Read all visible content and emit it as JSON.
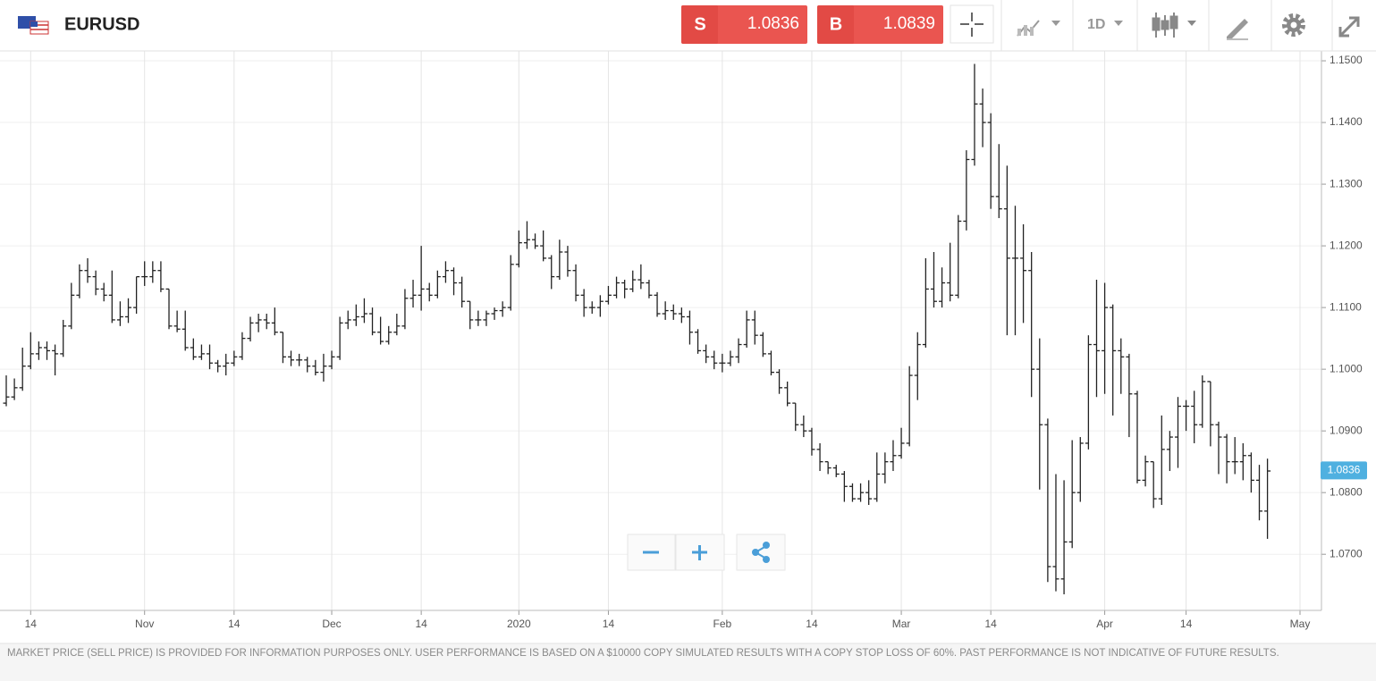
{
  "header": {
    "symbol": "EURUSD",
    "sell_label": "S",
    "sell_price": 1.0836,
    "buy_label": "B",
    "buy_price": 1.0839,
    "timeframe": "1D"
  },
  "footer": {
    "disclaimer": "MARKET PRICE (SELL PRICE) IS PROVIDED FOR INFORMATION PURPOSES ONLY. USER PERFORMANCE IS BASED ON A $10000 COPY SIMULATED RESULTS WITH A COPY STOP LOSS OF 60%. PAST PERFORMANCE IS NOT INDICATIVE OF FUTURE RESULTS."
  },
  "chart_data": {
    "type": "ohlc",
    "color": "#222222",
    "grid": true,
    "current_price": 1.0836,
    "ylim": [
      1.0609,
      1.1516
    ],
    "yticks": [
      {
        "value": 1.07,
        "label": "1.0700"
      },
      {
        "value": 1.08,
        "label": "1.0800"
      },
      {
        "value": 1.09,
        "label": "1.0900"
      },
      {
        "value": 1.1,
        "label": "1.1000"
      },
      {
        "value": 1.11,
        "label": "1.1100"
      },
      {
        "value": 1.12,
        "label": "1.1200"
      },
      {
        "value": 1.13,
        "label": "1.1300"
      },
      {
        "value": 1.14,
        "label": "1.1400"
      },
      {
        "value": 1.15,
        "label": "1.1500"
      }
    ],
    "categories": [
      null,
      null,
      null,
      "14",
      null,
      null,
      null,
      null,
      null,
      null,
      null,
      null,
      null,
      null,
      null,
      null,
      null,
      "Nov",
      null,
      null,
      null,
      null,
      null,
      null,
      null,
      null,
      null,
      null,
      "14",
      null,
      null,
      null,
      null,
      null,
      null,
      null,
      null,
      null,
      null,
      null,
      "Dec",
      null,
      null,
      null,
      null,
      null,
      null,
      null,
      null,
      null,
      null,
      "14",
      null,
      null,
      null,
      null,
      null,
      null,
      null,
      null,
      null,
      null,
      null,
      "2020",
      null,
      null,
      null,
      null,
      null,
      null,
      null,
      null,
      null,
      null,
      "14",
      null,
      null,
      null,
      null,
      null,
      null,
      null,
      null,
      null,
      null,
      null,
      null,
      null,
      "Feb",
      null,
      null,
      null,
      null,
      null,
      null,
      null,
      null,
      null,
      null,
      "14",
      null,
      null,
      null,
      null,
      null,
      null,
      null,
      null,
      null,
      null,
      "Mar",
      null,
      null,
      null,
      null,
      null,
      null,
      null,
      null,
      null,
      null,
      "14",
      null,
      null,
      null,
      null,
      null,
      null,
      null,
      null,
      null,
      null,
      null,
      null,
      null,
      "Apr",
      null,
      null,
      null,
      null,
      null,
      null,
      null,
      null,
      null,
      "14",
      null,
      null,
      null,
      null,
      null,
      null,
      null,
      null,
      null,
      null,
      null,
      null,
      null,
      "May"
    ],
    "open": [
      1.0945,
      1.0955,
      1.097,
      1.1005,
      1.1025,
      1.1035,
      1.103,
      1.1025,
      1.107,
      1.112,
      1.116,
      1.115,
      1.113,
      1.112,
      1.108,
      1.1085,
      1.11,
      1.115,
      1.115,
      1.116,
      1.113,
      1.107,
      1.1065,
      1.1035,
      1.102,
      1.1025,
      1.101,
      1.1005,
      1.101,
      1.102,
      1.105,
      1.1075,
      1.108,
      1.1075,
      1.106,
      1.102,
      1.1015,
      1.1015,
      1.1005,
      1.0995,
      1.1005,
      1.102,
      1.1075,
      1.108,
      1.1085,
      1.109,
      1.106,
      1.1045,
      1.106,
      1.107,
      1.1115,
      1.112,
      1.113,
      1.112,
      1.115,
      1.116,
      1.114,
      1.111,
      1.108,
      1.108,
      1.109,
      1.1095,
      1.11,
      1.117,
      1.1205,
      1.121,
      1.12,
      1.118,
      1.115,
      1.119,
      1.116,
      1.112,
      1.11,
      1.11,
      1.111,
      1.112,
      1.114,
      1.113,
      1.1145,
      1.114,
      1.112,
      1.109,
      1.1095,
      1.109,
      1.1085,
      1.106,
      1.103,
      1.102,
      1.101,
      1.101,
      1.102,
      1.104,
      1.108,
      1.1055,
      1.1025,
      1.0995,
      1.097,
      1.0945,
      1.091,
      1.09,
      1.087,
      1.085,
      1.084,
      1.083,
      1.081,
      1.079,
      1.08,
      1.079,
      1.083,
      1.085,
      1.086,
      1.088,
      1.099,
      1.104,
      1.113,
      1.111,
      1.114,
      1.112,
      1.124,
      1.134,
      1.143,
      1.14,
      1.128,
      1.126,
      1.118,
      1.118,
      1.116,
      1.1,
      1.091,
      1.068,
      1.066,
      1.072,
      1.08,
      1.088,
      1.104,
      1.103,
      1.11,
      1.103,
      1.102,
      1.096,
      1.082,
      1.085,
      1.079,
      1.087,
      1.089,
      1.094,
      1.094,
      1.091,
      1.098,
      1.091,
      1.089,
      1.085,
      1.085,
      1.086,
      1.082,
      1.077,
      null,
      null,
      null,
      null
    ],
    "high": [
      1.099,
      1.0985,
      1.1035,
      1.106,
      1.1045,
      1.1045,
      1.104,
      1.108,
      1.114,
      1.117,
      1.118,
      1.116,
      1.114,
      1.116,
      1.111,
      1.1115,
      1.115,
      1.1175,
      1.1175,
      1.1175,
      1.113,
      1.1095,
      1.1095,
      1.105,
      1.104,
      1.104,
      1.1015,
      1.1025,
      1.103,
      1.106,
      1.1085,
      1.109,
      1.109,
      1.11,
      1.106,
      1.103,
      1.1025,
      1.102,
      1.1015,
      1.1025,
      1.103,
      1.1085,
      1.1095,
      1.1105,
      1.1115,
      1.11,
      1.1085,
      1.107,
      1.109,
      1.113,
      1.1145,
      1.12,
      1.114,
      1.116,
      1.1175,
      1.1165,
      1.115,
      1.111,
      1.1095,
      1.1095,
      1.11,
      1.111,
      1.1185,
      1.1225,
      1.124,
      1.122,
      1.1225,
      1.1185,
      1.121,
      1.12,
      1.117,
      1.113,
      1.111,
      1.112,
      1.1135,
      1.115,
      1.1145,
      1.116,
      1.117,
      1.1145,
      1.1125,
      1.111,
      1.1105,
      1.11,
      1.1095,
      1.1065,
      1.104,
      1.103,
      1.1025,
      1.103,
      1.105,
      1.1095,
      1.1095,
      1.106,
      1.103,
      1.1,
      1.098,
      1.0945,
      1.0925,
      1.0905,
      1.088,
      1.085,
      1.0845,
      1.0835,
      1.0815,
      1.0815,
      1.082,
      1.0865,
      1.0865,
      1.0885,
      1.0905,
      1.1005,
      1.106,
      1.118,
      1.119,
      1.1165,
      1.1205,
      1.125,
      1.1355,
      1.1495,
      1.1455,
      1.1415,
      1.1365,
      1.133,
      1.1265,
      1.1235,
      1.119,
      1.105,
      1.092,
      1.083,
      1.082,
      1.0885,
      1.089,
      1.1055,
      1.1145,
      1.114,
      1.1105,
      1.105,
      1.1025,
      1.0965,
      1.086,
      1.085,
      1.0925,
      1.09,
      1.0955,
      1.095,
      1.0965,
      1.099,
      1.098,
      1.0915,
      1.0895,
      1.089,
      1.088,
      1.0865,
      1.0845,
      1.0855,
      null,
      null,
      null,
      null
    ],
    "low": [
      1.094,
      1.095,
      1.0965,
      1.1,
      1.1015,
      1.1015,
      1.099,
      1.102,
      1.1065,
      1.1115,
      1.114,
      1.112,
      1.111,
      1.1075,
      1.107,
      1.1075,
      1.109,
      1.1135,
      1.114,
      1.1125,
      1.1065,
      1.106,
      1.103,
      1.1015,
      1.1015,
      1.1,
      1.0995,
      1.099,
      1.1005,
      1.1015,
      1.1045,
      1.106,
      1.1065,
      1.1055,
      1.101,
      1.1005,
      1.1005,
      1.0995,
      1.099,
      1.098,
      1.1,
      1.1015,
      1.1065,
      1.107,
      1.1075,
      1.1055,
      1.104,
      1.104,
      1.1055,
      1.1065,
      1.11,
      1.1095,
      1.111,
      1.1115,
      1.114,
      1.112,
      1.11,
      1.1065,
      1.107,
      1.107,
      1.108,
      1.1085,
      1.1095,
      1.1165,
      1.1195,
      1.1195,
      1.1175,
      1.113,
      1.1145,
      1.115,
      1.111,
      1.1085,
      1.109,
      1.1085,
      1.1105,
      1.1115,
      1.1115,
      1.1125,
      1.113,
      1.1115,
      1.1085,
      1.108,
      1.108,
      1.1075,
      1.104,
      1.1025,
      1.101,
      1.1,
      1.0995,
      1.1005,
      1.101,
      1.1035,
      1.104,
      1.102,
      1.099,
      1.096,
      1.094,
      1.09,
      1.089,
      1.086,
      1.0835,
      1.083,
      1.0825,
      1.0785,
      1.0785,
      1.0785,
      1.078,
      1.0785,
      1.0815,
      1.0835,
      1.0855,
      1.0875,
      1.095,
      1.1035,
      1.11,
      1.11,
      1.111,
      1.1115,
      1.1225,
      1.133,
      1.136,
      1.126,
      1.1245,
      1.1055,
      1.1055,
      1.1075,
      1.0955,
      1.0805,
      1.0655,
      1.064,
      1.0635,
      1.071,
      1.0785,
      1.087,
      1.0955,
      1.096,
      1.0925,
      1.096,
      1.089,
      1.0815,
      1.081,
      1.0775,
      1.078,
      1.0835,
      1.084,
      1.09,
      1.088,
      1.0905,
      1.0875,
      1.083,
      1.0815,
      1.083,
      1.082,
      1.08,
      1.0755,
      1.0725,
      null,
      null,
      null,
      null
    ],
    "close": [
      1.0955,
      1.097,
      1.1005,
      1.1025,
      1.1035,
      1.103,
      1.1025,
      1.107,
      1.112,
      1.116,
      1.115,
      1.113,
      1.112,
      1.108,
      1.1085,
      1.11,
      1.115,
      1.115,
      1.116,
      1.113,
      1.107,
      1.1065,
      1.1035,
      1.102,
      1.1025,
      1.101,
      1.1005,
      1.101,
      1.102,
      1.105,
      1.1075,
      1.108,
      1.1075,
      1.106,
      1.102,
      1.1015,
      1.1015,
      1.1005,
      1.0995,
      1.1005,
      1.102,
      1.1075,
      1.108,
      1.1085,
      1.109,
      1.106,
      1.1045,
      1.106,
      1.107,
      1.1115,
      1.112,
      1.113,
      1.112,
      1.115,
      1.116,
      1.114,
      1.111,
      1.108,
      1.108,
      1.109,
      1.1095,
      1.11,
      1.117,
      1.1205,
      1.121,
      1.12,
      1.118,
      1.115,
      1.119,
      1.116,
      1.112,
      1.11,
      1.11,
      1.111,
      1.112,
      1.114,
      1.113,
      1.1145,
      1.114,
      1.112,
      1.109,
      1.1095,
      1.109,
      1.1085,
      1.106,
      1.103,
      1.102,
      1.101,
      1.101,
      1.102,
      1.104,
      1.108,
      1.1055,
      1.1025,
      1.0995,
      1.097,
      1.0945,
      1.091,
      1.09,
      1.087,
      1.085,
      1.084,
      1.083,
      1.081,
      1.079,
      1.08,
      1.079,
      1.083,
      1.085,
      1.086,
      1.088,
      1.099,
      1.104,
      1.113,
      1.111,
      1.114,
      1.112,
      1.124,
      1.134,
      1.143,
      1.14,
      1.128,
      1.126,
      1.118,
      1.118,
      1.116,
      1.1,
      1.091,
      1.068,
      1.066,
      1.072,
      1.08,
      1.088,
      1.104,
      1.103,
      1.11,
      1.103,
      1.102,
      1.096,
      1.082,
      1.085,
      1.079,
      1.087,
      1.089,
      1.094,
      1.094,
      1.091,
      1.098,
      1.091,
      1.089,
      1.085,
      1.085,
      1.086,
      1.082,
      1.077,
      1.0835,
      null,
      null,
      null,
      null
    ]
  }
}
